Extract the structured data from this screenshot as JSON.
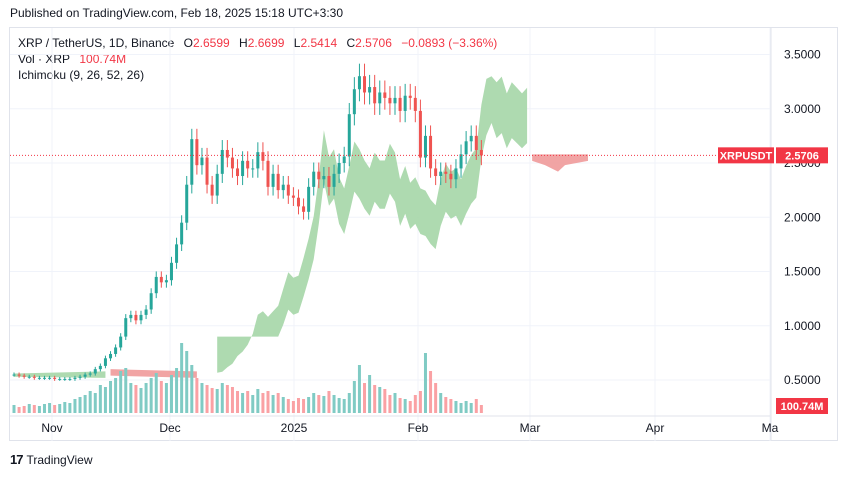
{
  "header": {
    "published": "Published on TradingView.com, Feb 18, 2025 15:18 UTC+3:30"
  },
  "legend": {
    "symbol": "XRP / TetherUS, 1D, Binance",
    "o_label": "O",
    "o_value": "2.6599",
    "h_label": "H",
    "h_value": "2.6699",
    "l_label": "L",
    "l_value": "2.5414",
    "c_label": "C",
    "c_value": "2.5706",
    "change": "−0.0893 (−3.36%)",
    "vol_label": "Vol · XRP",
    "vol_value": "100.74M",
    "ichimoku": "Ichimoku (9, 26, 52, 26)"
  },
  "footer": {
    "brand": "TradingView",
    "logo_text": "17"
  },
  "colors": {
    "up": "#26a69a",
    "down": "#ef5350",
    "cloud_up": "#a5d6a7",
    "cloud_down": "#ef9a9a",
    "vol_up": "#80cbc4",
    "vol_down": "#faa1a4",
    "last": "#f23645"
  },
  "chart_data": {
    "type": "candlestick",
    "yticks": [
      "3.5000",
      "3.0000",
      "2.5000",
      "2.0000",
      "1.5000",
      "1.0000",
      "0.5000"
    ],
    "ylim": [
      0.25,
      3.82
    ],
    "xticks": [
      "Nov",
      "Dec",
      "2025",
      "Feb",
      "Mar",
      "Apr",
      "Ma"
    ],
    "x_range": [
      "2024-10-18",
      "2025-05-01"
    ],
    "last_price_label": "XRPUSDT",
    "last_price": "2.5706",
    "volume_label": "100.74M",
    "closes": [
      0.55,
      0.54,
      0.53,
      0.53,
      0.52,
      0.52,
      0.52,
      0.52,
      0.51,
      0.51,
      0.51,
      0.51,
      0.52,
      0.53,
      0.55,
      0.56,
      0.6,
      0.63,
      0.7,
      0.74,
      0.8,
      0.9,
      1.07,
      1.1,
      1.05,
      1.1,
      1.15,
      1.3,
      1.45,
      1.4,
      1.42,
      1.58,
      1.75,
      1.95,
      2.3,
      2.72,
      2.48,
      2.55,
      2.3,
      2.2,
      2.4,
      2.62,
      2.55,
      2.45,
      2.38,
      2.52,
      2.45,
      2.45,
      2.6,
      2.52,
      2.28,
      2.4,
      2.25,
      2.3,
      2.2,
      2.18,
      2.1,
      2.05,
      2.28,
      2.42,
      2.35,
      2.38,
      2.28,
      2.4,
      2.5,
      2.56,
      2.95,
      3.18,
      3.3,
      3.15,
      3.2,
      3.05,
      3.15,
      3.1,
      3.05,
      3.1,
      2.98,
      3.12,
      3.1,
      2.98,
      2.55,
      2.75,
      2.45,
      2.38,
      2.42,
      2.4,
      2.35,
      2.45,
      2.58,
      2.7,
      2.75,
      2.62,
      2.57
    ],
    "volume_heights": [
      8,
      6,
      7,
      9,
      8,
      7,
      9,
      10,
      8,
      9,
      11,
      10,
      14,
      16,
      18,
      22,
      20,
      28,
      26,
      32,
      35,
      42,
      45,
      30,
      28,
      25,
      30,
      35,
      40,
      32,
      30,
      38,
      45,
      70,
      62,
      48,
      35,
      30,
      28,
      25,
      24,
      30,
      28,
      26,
      22,
      20,
      22,
      18,
      24,
      20,
      22,
      18,
      20,
      16,
      14,
      12,
      15,
      14,
      16,
      20,
      18,
      17,
      22,
      18,
      15,
      14,
      20,
      32,
      48,
      30,
      38,
      28,
      26,
      24,
      18,
      20,
      15,
      14,
      12,
      18,
      22,
      60,
      42,
      30,
      20,
      16,
      14,
      12,
      10,
      12,
      10,
      14,
      8
    ]
  }
}
